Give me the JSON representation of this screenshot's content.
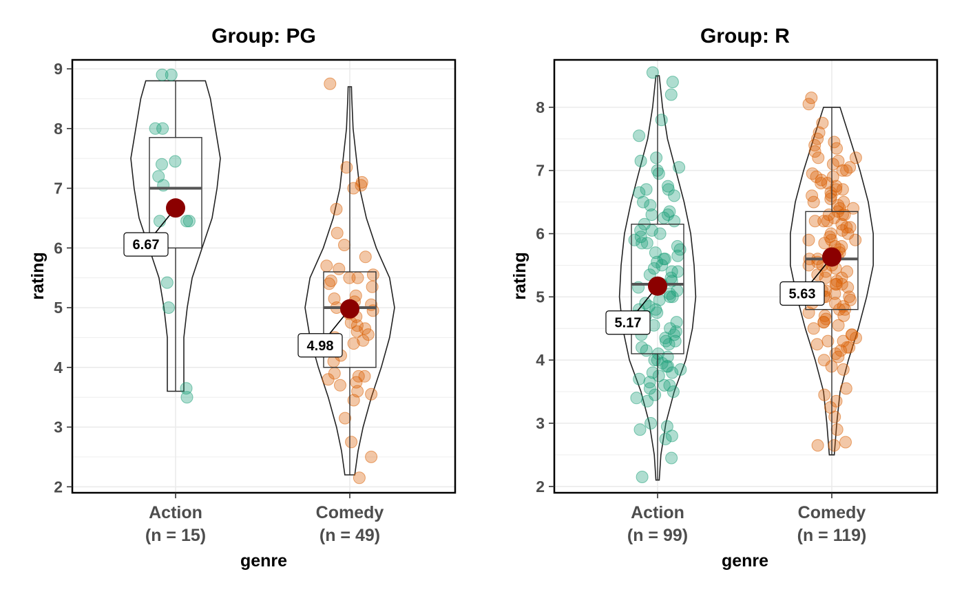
{
  "chart_data": [
    {
      "type": "violin-box",
      "title": "Group: PG",
      "xlabel": "genre",
      "ylabel": "rating",
      "ylim": [
        1.9,
        9.15
      ],
      "yticks": [
        2,
        3,
        4,
        5,
        6,
        7,
        8,
        9
      ],
      "grid": true,
      "groups": [
        {
          "name": "Action",
          "n_label": "(n = 15)",
          "color": "#1b9e77",
          "box": {
            "q1": 6.0,
            "median": 7.0,
            "q3": 7.85
          },
          "range": [
            3.6,
            8.8
          ],
          "mean": 6.67,
          "mean_label": "6.67",
          "points": [
            8.9,
            8.9,
            8.0,
            8.0,
            7.45,
            7.2,
            7.05,
            6.45,
            6.45,
            5.42,
            5.0,
            3.65,
            3.5,
            6.45,
            7.4
          ],
          "violin": [
            [
              3.6,
              0.05
            ],
            [
              4.0,
              0.05
            ],
            [
              4.5,
              0.05
            ],
            [
              5.0,
              0.07
            ],
            [
              5.5,
              0.1
            ],
            [
              6.0,
              0.16
            ],
            [
              6.5,
              0.22
            ],
            [
              7.0,
              0.25
            ],
            [
              7.5,
              0.27
            ],
            [
              8.0,
              0.24
            ],
            [
              8.5,
              0.21
            ],
            [
              8.8,
              0.18
            ]
          ]
        },
        {
          "name": "Comedy",
          "n_label": "(n = 49)",
          "color": "#d95f02",
          "box": {
            "q1": 4.0,
            "median": 5.0,
            "q3": 5.6
          },
          "range": [
            2.2,
            8.7
          ],
          "mean": 4.98,
          "mean_label": "4.98",
          "points": [
            8.75,
            7.35,
            7.1,
            7.05,
            7.0,
            6.65,
            6.25,
            6.05,
            5.85,
            5.7,
            5.65,
            5.55,
            5.5,
            5.5,
            5.45,
            5.4,
            5.35,
            5.2,
            5.15,
            5.1,
            5.05,
            5.0,
            4.95,
            4.9,
            4.85,
            4.75,
            4.7,
            4.65,
            4.6,
            4.55,
            4.5,
            4.45,
            4.4,
            4.3,
            4.2,
            4.1,
            3.9,
            3.85,
            3.8,
            3.75,
            3.7,
            3.6,
            3.55,
            3.45,
            3.15,
            2.75,
            2.5,
            2.15,
            3.85
          ],
          "violin": [
            [
              2.2,
              0.03
            ],
            [
              2.6,
              0.05
            ],
            [
              3.0,
              0.08
            ],
            [
              3.5,
              0.13
            ],
            [
              4.0,
              0.19
            ],
            [
              4.5,
              0.24
            ],
            [
              5.0,
              0.27
            ],
            [
              5.5,
              0.24
            ],
            [
              6.0,
              0.16
            ],
            [
              6.5,
              0.1
            ],
            [
              7.0,
              0.06
            ],
            [
              7.5,
              0.04
            ],
            [
              8.0,
              0.02
            ],
            [
              8.5,
              0.012
            ],
            [
              8.7,
              0.01
            ]
          ]
        }
      ]
    },
    {
      "type": "violin-box",
      "title": "Group: R",
      "xlabel": "genre",
      "ylabel": "rating",
      "ylim": [
        1.9,
        8.75
      ],
      "yticks": [
        2,
        3,
        4,
        5,
        6,
        7,
        8
      ],
      "grid": true,
      "groups": [
        {
          "name": "Action",
          "n_label": "(n = 99)",
          "color": "#1b9e77",
          "box": {
            "q1": 4.1,
            "median": 5.2,
            "q3": 6.15
          },
          "range": [
            2.1,
            8.5
          ],
          "mean": 5.17,
          "mean_label": "5.17",
          "points": [
            8.55,
            8.4,
            8.2,
            7.8,
            7.55,
            7.2,
            7.15,
            7.05,
            7.0,
            6.95,
            6.75,
            6.7,
            6.65,
            6.6,
            6.5,
            6.45,
            6.35,
            6.3,
            6.25,
            6.2,
            6.15,
            6.05,
            6.0,
            5.95,
            5.9,
            5.85,
            5.8,
            5.75,
            5.7,
            5.65,
            5.6,
            5.55,
            5.5,
            5.45,
            5.4,
            5.35,
            5.3,
            5.25,
            5.2,
            5.15,
            5.1,
            5.05,
            5.0,
            4.95,
            4.9,
            4.85,
            4.8,
            4.75,
            4.7,
            4.65,
            4.6,
            4.55,
            4.5,
            4.45,
            4.4,
            4.35,
            4.3,
            4.25,
            4.2,
            4.15,
            4.1,
            4.05,
            4.0,
            3.95,
            3.9,
            3.85,
            3.8,
            3.75,
            3.7,
            3.65,
            3.6,
            3.55,
            3.5,
            3.45,
            3.4,
            3.35,
            3.0,
            2.95,
            2.9,
            2.8,
            2.75,
            2.45,
            2.15,
            6.3,
            5.6,
            5.4,
            4.7,
            4.4,
            4.0,
            3.9,
            6.7,
            6.05,
            5.85,
            5.0,
            4.8,
            4.6,
            4.3,
            3.8,
            3.6
          ],
          "violin": [
            [
              2.1,
              0.01
            ],
            [
              2.5,
              0.02
            ],
            [
              3.0,
              0.05
            ],
            [
              3.5,
              0.1
            ],
            [
              4.0,
              0.17
            ],
            [
              4.5,
              0.21
            ],
            [
              5.0,
              0.23
            ],
            [
              5.5,
              0.22
            ],
            [
              6.0,
              0.2
            ],
            [
              6.5,
              0.16
            ],
            [
              7.0,
              0.11
            ],
            [
              7.5,
              0.06
            ],
            [
              8.0,
              0.03
            ],
            [
              8.5,
              0.01
            ]
          ]
        },
        {
          "name": "Comedy",
          "n_label": "(n = 119)",
          "color": "#d95f02",
          "box": {
            "q1": 4.8,
            "median": 5.6,
            "q3": 6.35
          },
          "range": [
            2.5,
            8.0
          ],
          "mean": 5.63,
          "mean_label": "5.63",
          "points": [
            8.15,
            8.05,
            7.75,
            7.6,
            7.5,
            7.45,
            7.4,
            7.35,
            7.3,
            7.2,
            7.15,
            7.1,
            7.05,
            7.0,
            6.95,
            6.9,
            6.85,
            6.8,
            6.75,
            6.7,
            6.65,
            6.6,
            6.55,
            6.5,
            6.45,
            6.4,
            6.35,
            6.3,
            6.25,
            6.2,
            6.2,
            6.15,
            6.1,
            6.05,
            6.0,
            5.95,
            5.9,
            5.85,
            5.8,
            5.75,
            5.7,
            5.65,
            5.6,
            5.55,
            5.5,
            5.45,
            5.4,
            5.35,
            5.3,
            5.25,
            5.2,
            5.15,
            5.1,
            5.05,
            5.0,
            4.95,
            4.9,
            4.85,
            4.8,
            4.75,
            4.7,
            4.65,
            4.6,
            4.55,
            4.5,
            4.4,
            4.35,
            4.3,
            4.25,
            4.2,
            4.15,
            4.1,
            4.05,
            4.0,
            3.9,
            3.85,
            3.55,
            3.45,
            3.35,
            3.25,
            3.1,
            2.9,
            2.7,
            2.65,
            2.65,
            6.2,
            6.3,
            6.1,
            5.9,
            5.7,
            5.4,
            5.2,
            5.0,
            4.8,
            4.3,
            6.7,
            6.5,
            6.0,
            5.8,
            5.5,
            5.3,
            4.9,
            4.6,
            7.0,
            6.9,
            6.4,
            5.6,
            5.1,
            4.4,
            7.2,
            6.6,
            5.9,
            5.2,
            4.7,
            4.2,
            6.8,
            6.3,
            5.5,
            5.0
          ],
          "violin": [
            [
              2.5,
              0.015
            ],
            [
              3.0,
              0.03
            ],
            [
              3.5,
              0.05
            ],
            [
              4.0,
              0.1
            ],
            [
              4.5,
              0.16
            ],
            [
              5.0,
              0.21
            ],
            [
              5.5,
              0.25
            ],
            [
              6.0,
              0.25
            ],
            [
              6.5,
              0.22
            ],
            [
              7.0,
              0.17
            ],
            [
              7.5,
              0.11
            ],
            [
              8.0,
              0.05
            ]
          ]
        }
      ]
    }
  ],
  "style": {
    "mean_color": "#8b0000",
    "box_color": "#333333",
    "median_color": "#555555",
    "grid_color": "#ebebeb",
    "panel_border": "#000000"
  }
}
